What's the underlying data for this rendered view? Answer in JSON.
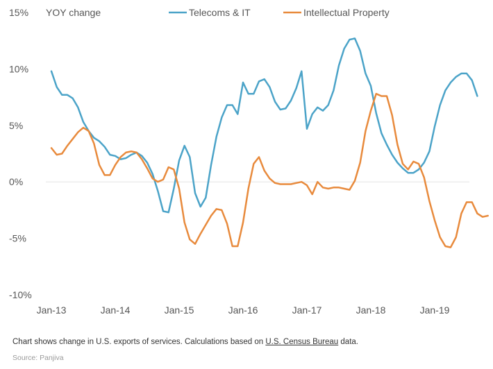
{
  "chart_data": {
    "type": "line",
    "title": "",
    "ylabel": "YOY change",
    "xlabel": "",
    "ylim": [
      -10,
      15
    ],
    "yticks": [
      15,
      10,
      5,
      0,
      -5,
      -10
    ],
    "ytick_labels": [
      "15%",
      "10%",
      "5%",
      "0%",
      "-5%",
      "-10%"
    ],
    "xtick_labels": [
      "Jan-13",
      "Jan-14",
      "Jan-15",
      "Jan-16",
      "Jan-17",
      "Jan-18",
      "Jan-19"
    ],
    "x_start": "2013-01",
    "x_frequency": "monthly",
    "legend_position": "top",
    "grid": "horizontal zero line only",
    "series": [
      {
        "name": "Telecoms & IT",
        "color": "#4BA3C8",
        "values": [
          9.8,
          8.4,
          7.7,
          7.7,
          7.4,
          6.6,
          5.3,
          4.5,
          3.9,
          3.6,
          3.1,
          2.4,
          2.3,
          2.0,
          2.1,
          2.4,
          2.6,
          2.3,
          1.7,
          0.7,
          -0.8,
          -2.6,
          -2.7,
          -0.6,
          1.9,
          3.2,
          2.2,
          -1.0,
          -2.2,
          -1.4,
          1.5,
          4.0,
          5.7,
          6.8,
          6.8,
          6.0,
          8.8,
          7.8,
          7.8,
          8.9,
          9.1,
          8.4,
          7.1,
          6.4,
          6.5,
          7.2,
          8.3,
          9.8,
          4.7,
          6.0,
          6.6,
          6.3,
          6.8,
          8.1,
          10.3,
          11.8,
          12.6,
          12.7,
          11.6,
          9.6,
          8.5,
          6.1,
          4.3,
          3.3,
          2.4,
          1.7,
          1.2,
          0.8,
          0.8,
          1.1,
          1.7,
          2.7,
          4.9,
          6.8,
          8.1,
          8.8,
          9.3,
          9.6,
          9.6,
          9.0,
          7.6
        ]
      },
      {
        "name": "Intellectual Property",
        "color": "#E88A3C",
        "values": [
          3.0,
          2.4,
          2.5,
          3.2,
          3.8,
          4.4,
          4.8,
          4.5,
          3.4,
          1.5,
          0.6,
          0.6,
          1.5,
          2.2,
          2.6,
          2.7,
          2.6,
          2.0,
          1.2,
          0.3,
          0.0,
          0.2,
          1.3,
          1.1,
          -0.6,
          -3.6,
          -5.1,
          -5.5,
          -4.6,
          -3.8,
          -3.0,
          -2.4,
          -2.5,
          -3.7,
          -5.7,
          -5.7,
          -3.6,
          -0.6,
          1.6,
          2.2,
          1.0,
          0.3,
          -0.1,
          -0.2,
          -0.2,
          -0.2,
          -0.1,
          0.0,
          -0.3,
          -1.1,
          0.0,
          -0.5,
          -0.6,
          -0.5,
          -0.5,
          -0.6,
          -0.7,
          0.1,
          1.7,
          4.5,
          6.3,
          7.8,
          7.6,
          7.6,
          5.9,
          3.3,
          1.6,
          1.1,
          1.8,
          1.6,
          0.4,
          -1.7,
          -3.4,
          -4.9,
          -5.7,
          -5.8,
          -4.9,
          -2.8,
          -1.8,
          -1.8,
          -2.8,
          -3.1,
          -3.0
        ]
      }
    ]
  },
  "footnote": {
    "text_before": "Chart shows change in U.S. exports of services. Calculations based on ",
    "link_text": "U.S. Census Bureau",
    "text_after": " data."
  },
  "source": "Source: Panjiva"
}
